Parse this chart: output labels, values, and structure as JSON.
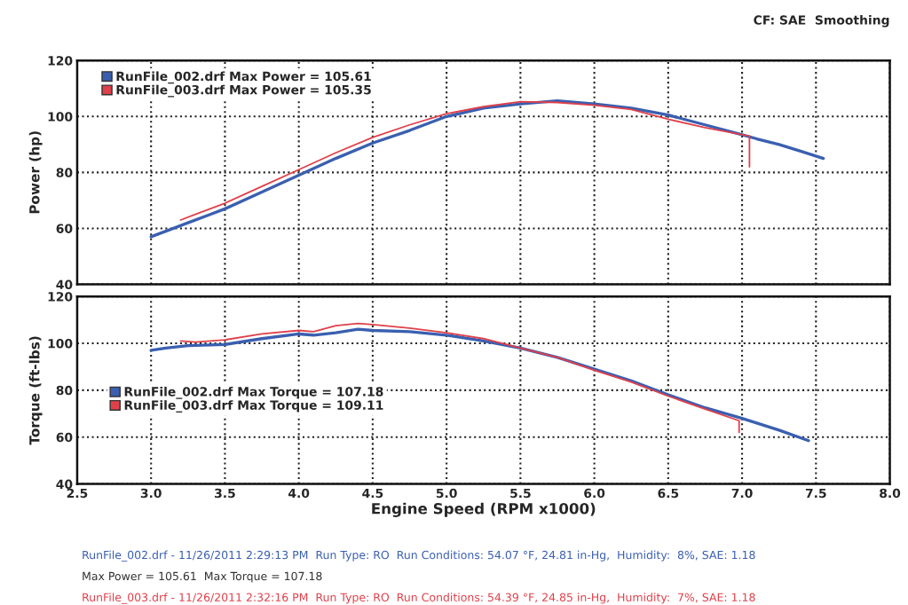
{
  "chart_data": [
    {
      "type": "line",
      "ylabel": "Power (hp)",
      "xlim": [
        2.5,
        8.0
      ],
      "xticks": [
        2.5,
        3,
        3.5,
        4,
        4.5,
        5,
        5.5,
        6,
        6.5,
        7,
        7.5,
        8
      ],
      "ylim": [
        40,
        120
      ],
      "yticks": [
        40,
        60,
        80,
        100,
        120
      ],
      "grid": true,
      "legend": "top left",
      "tick_labels": "y",
      "marker": "none",
      "annotations": [
        "CF: SAE  Smoothing"
      ],
      "series": [
        {
          "name": "RunFile_002.drf Max Power = 105.61",
          "color": "#3a5fb0",
          "x": [
            3.0,
            3.1,
            3.25,
            3.4,
            3.5,
            3.75,
            4.0,
            4.25,
            4.5,
            4.75,
            5.0,
            5.25,
            5.5,
            5.75,
            6.0,
            6.25,
            6.5,
            6.75,
            7.0,
            7.1,
            7.25,
            7.4,
            7.55
          ],
          "values": [
            57,
            59,
            62,
            65,
            67,
            73,
            79,
            85,
            90.5,
            95,
            100,
            103,
            104.5,
            105.6,
            104.5,
            103,
            100.5,
            97,
            93.5,
            92,
            90,
            87.5,
            85
          ]
        },
        {
          "name": "RunFile_003.drf Max Power = 105.35",
          "color": "#e0404a",
          "x": [
            3.2,
            3.3,
            3.5,
            3.75,
            4.0,
            4.25,
            4.5,
            4.75,
            5.0,
            5.25,
            5.5,
            5.75,
            6.0,
            6.25,
            6.5,
            6.75,
            6.9,
            7.05,
            7.05
          ],
          "values": [
            63,
            65,
            69,
            75,
            81,
            87,
            92.5,
            97,
            101,
            103.5,
            105.3,
            105,
            104,
            102.5,
            99,
            96,
            94.5,
            93,
            82
          ]
        }
      ]
    },
    {
      "type": "line",
      "xlabel": "Engine Speed (RPM x1000)",
      "ylabel": "Torque (ft-lbs)",
      "xlim": [
        2.5,
        8.0
      ],
      "xticks": [
        2.5,
        {
          "value": 3,
          "label": "3.0"
        },
        3.5,
        {
          "value": 4,
          "label": "4.0"
        },
        4.5,
        {
          "value": 5,
          "label": "5.0"
        },
        5.5,
        {
          "value": 6,
          "label": "6.0"
        },
        6.5,
        {
          "value": 7,
          "label": "7.0"
        },
        7.5,
        {
          "value": 8,
          "label": "8.0"
        }
      ],
      "ylim": [
        40,
        120
      ],
      "yticks": [
        40,
        60,
        80,
        100,
        120
      ],
      "grid": true,
      "legend": "left",
      "marker": "none",
      "annotations": [
        "RunFile_002.drf - 11/26/2011 2:29:13 PM  Run Type: RO  Run Conditions: 54.07 °F, 24.81 in-Hg,  Humidity:  8%, SAE: 1.18",
        "Max Power = 105.61  Max Torque = 107.18",
        "RunFile_003.drf - 11/26/2011 2:32:16 PM  Run Type: RO  Run Conditions: 54.39 °F, 24.85 in-Hg,  Humidity:  7%, SAE: 1.18"
      ],
      "series": [
        {
          "name": "RunFile_002.drf Max Torque = 107.18",
          "color": "#3a5fb0",
          "x": [
            3.0,
            3.1,
            3.25,
            3.5,
            3.75,
            4.0,
            4.1,
            4.25,
            4.4,
            4.5,
            4.75,
            5.0,
            5.25,
            5.5,
            5.75,
            6.0,
            6.25,
            6.5,
            6.75,
            7.0,
            7.25,
            7.45
          ],
          "values": [
            97,
            98,
            99,
            99.5,
            102,
            104,
            103.5,
            104.5,
            106,
            105.5,
            105,
            103.5,
            101,
            98,
            94,
            89,
            84,
            78,
            72.5,
            68,
            63,
            58.5
          ]
        },
        {
          "name": "RunFile_003.drf Max Torque = 109.11",
          "color": "#e0404a",
          "x": [
            3.2,
            3.3,
            3.5,
            3.75,
            4.0,
            4.1,
            4.25,
            4.4,
            4.5,
            4.75,
            5.0,
            5.25,
            5.5,
            5.75,
            6.0,
            6.25,
            6.5,
            6.75,
            6.98,
            6.98
          ],
          "values": [
            101,
            100.5,
            101.5,
            104,
            105.5,
            105,
            107.5,
            108.5,
            108,
            106.5,
            104.5,
            102,
            98,
            94,
            88.5,
            83.5,
            77.5,
            72,
            67,
            62
          ]
        }
      ]
    }
  ]
}
